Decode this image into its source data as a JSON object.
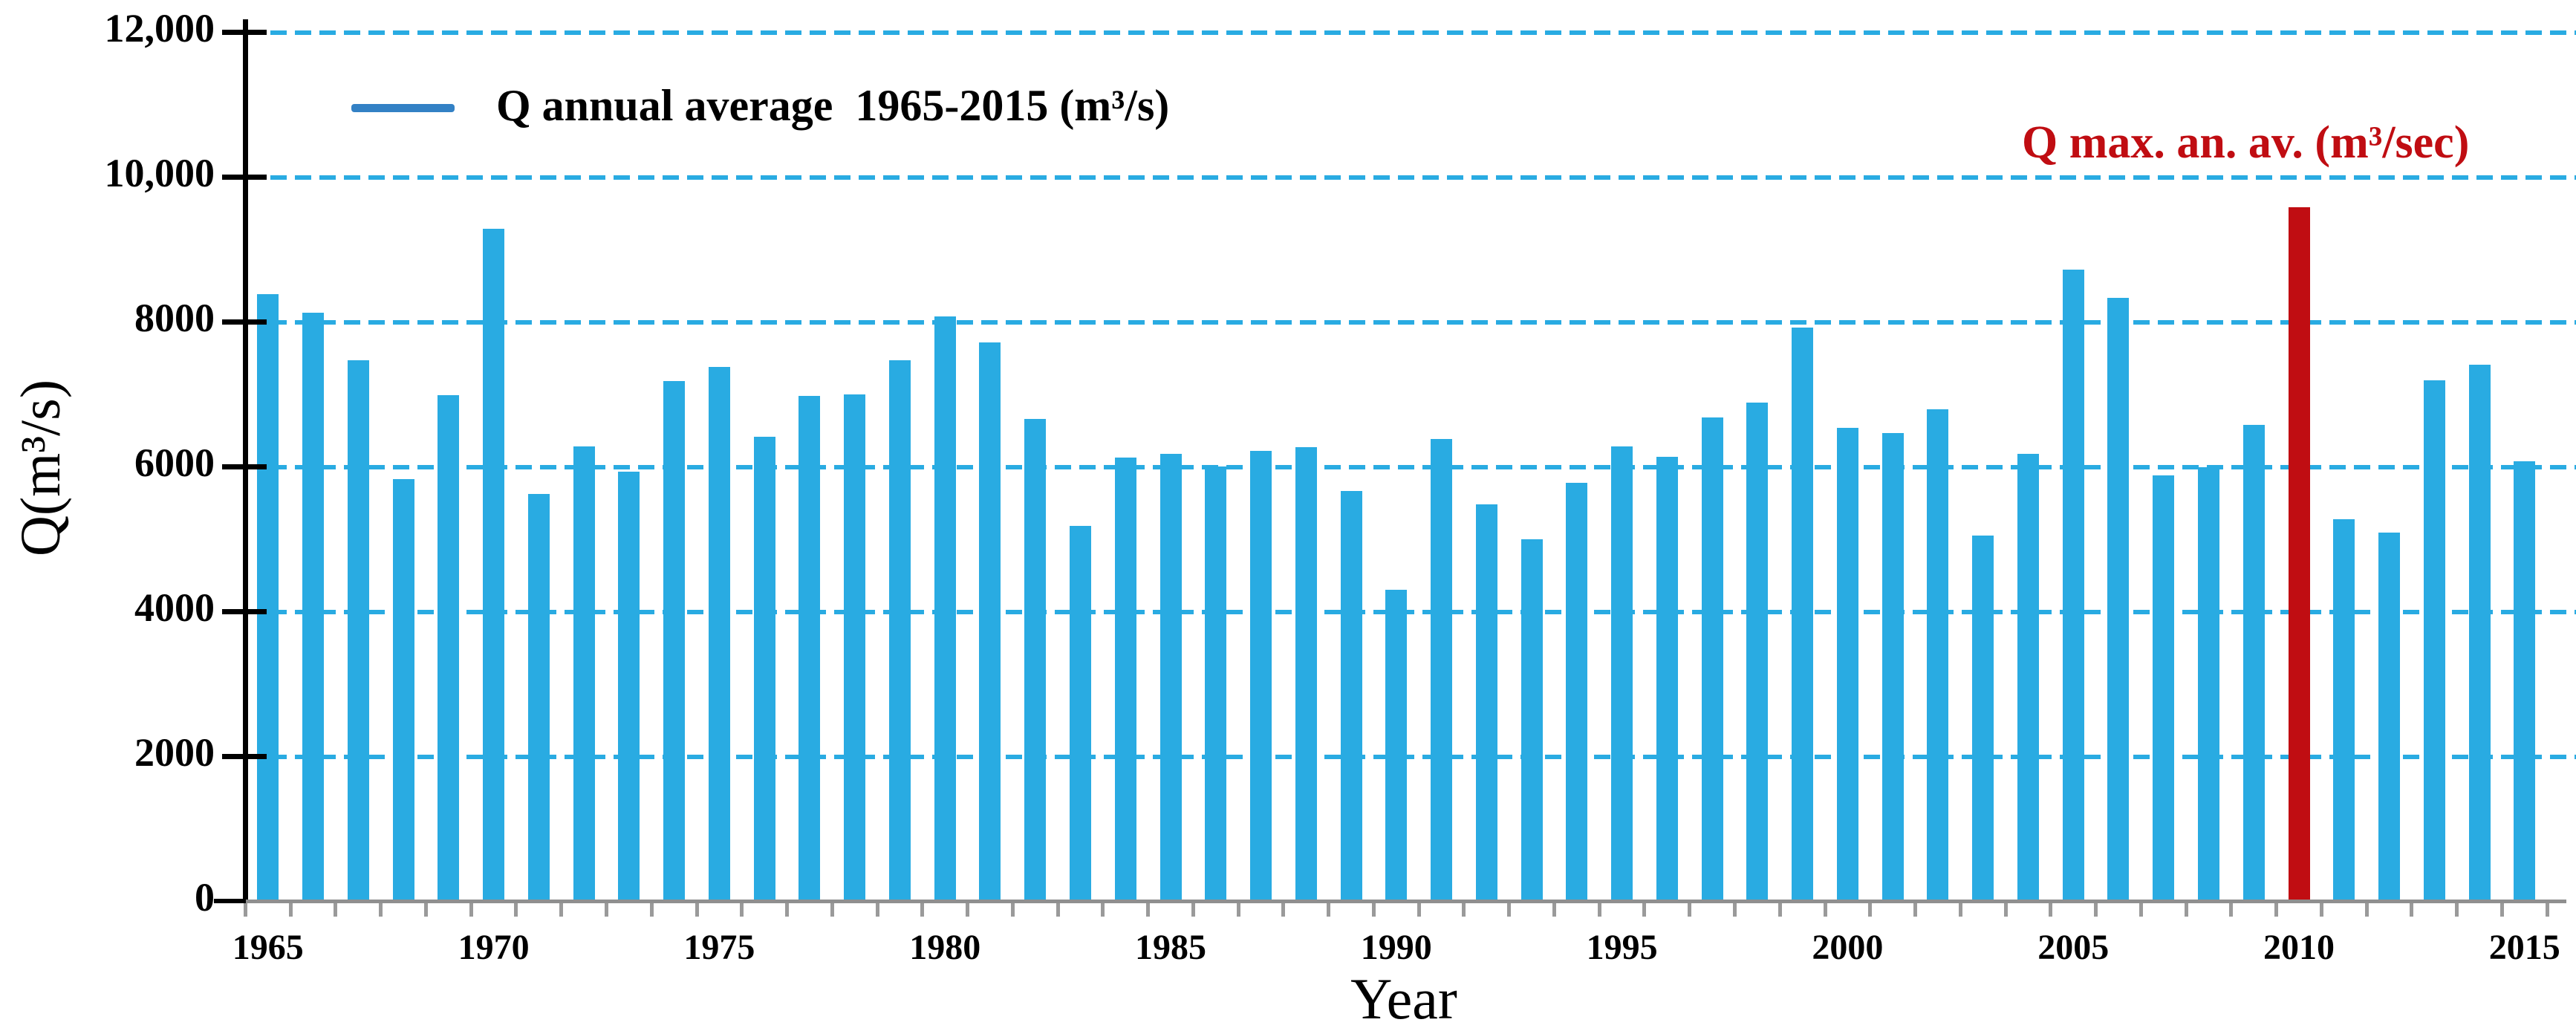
{
  "legend": {
    "label": "Q annual average  1965-2015 (m³/s)"
  },
  "annotation": {
    "label": "Q max. an. av. (m³/sec)"
  },
  "colors": {
    "bar_blue": "#29abe2",
    "bar_red": "#c00d12",
    "gridline": "#29abe2",
    "legend_swatch": "#3381c5",
    "annotation_text": "#c00d12",
    "axis_black": "#000000",
    "axis_gray": "#8f8f8f",
    "tick_gray": "#9a9a9a"
  },
  "chart_data": {
    "type": "bar",
    "title": "",
    "xlabel": "Year",
    "ylabel": "Q(m³/s)",
    "ylim": [
      0,
      12400
    ],
    "grid": "dashed horizontal",
    "legend_position": "top-left inside plot",
    "x": [
      1965,
      1966,
      1967,
      1968,
      1969,
      1970,
      1971,
      1972,
      1973,
      1974,
      1975,
      1976,
      1977,
      1978,
      1979,
      1980,
      1981,
      1982,
      1983,
      1984,
      1985,
      1986,
      1987,
      1988,
      1989,
      1990,
      1991,
      1992,
      1993,
      1994,
      1995,
      1996,
      1997,
      1998,
      1999,
      2000,
      2001,
      2002,
      2003,
      2004,
      2005,
      2006,
      2007,
      2008,
      2009,
      2010,
      2011,
      2012,
      2013,
      2014,
      2015
    ],
    "values": [
      8380,
      8130,
      7470,
      5830,
      6990,
      9290,
      5630,
      6280,
      5930,
      7180,
      7380,
      6420,
      6980,
      7000,
      7470,
      8080,
      7720,
      6660,
      5180,
      6130,
      6180,
      6010,
      6220,
      6270,
      5670,
      4300,
      6380,
      5480,
      5000,
      5780,
      6280,
      6140,
      6680,
      6890,
      7920,
      6540,
      6470,
      6790,
      5050,
      6180,
      8720,
      8330,
      5880,
      5990,
      6580,
      9580,
      5280,
      5090,
      7200,
      7410,
      6080
    ],
    "series_name": "Q annual average 1965-2015 (m³/s)",
    "highlight": {
      "x": 2010,
      "value": 9580,
      "label": "Q max. an. av. (m³/sec)"
    },
    "gridline_values": [
      2000,
      4000,
      6000,
      8000,
      10000,
      12000
    ],
    "yticks": [
      {
        "value": 0,
        "label": "0"
      },
      {
        "value": 2000,
        "label": "2000"
      },
      {
        "value": 4000,
        "label": "4000"
      },
      {
        "value": 6000,
        "label": "6000"
      },
      {
        "value": 8000,
        "label": "8000"
      },
      {
        "value": 10000,
        "label": "10,000"
      },
      {
        "value": 12000,
        "label": "12,000"
      }
    ],
    "xticks": [
      1965,
      1970,
      1975,
      1980,
      1985,
      1990,
      1995,
      2000,
      2005,
      2010,
      2015
    ]
  }
}
